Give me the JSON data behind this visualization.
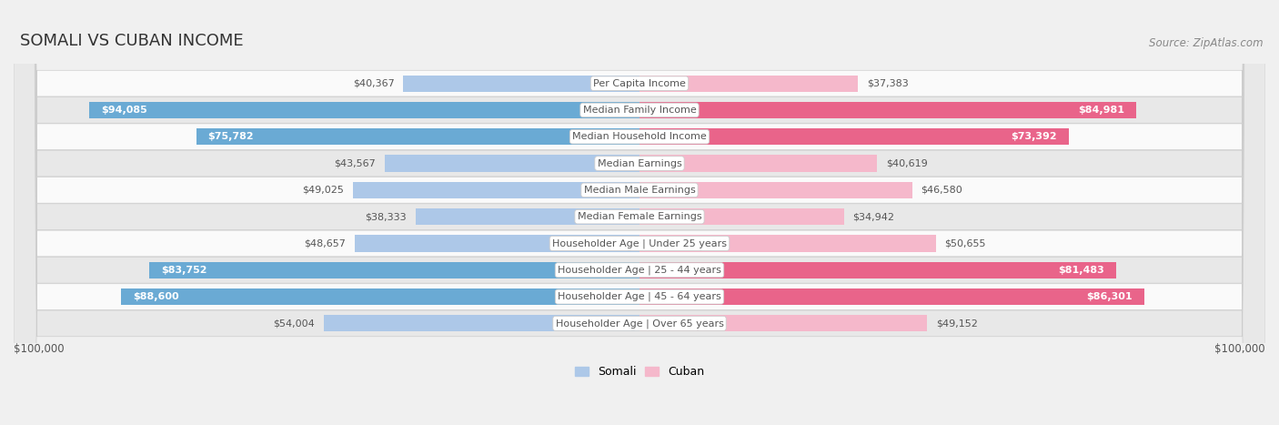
{
  "title": "SOMALI VS CUBAN INCOME",
  "source": "Source: ZipAtlas.com",
  "categories": [
    "Per Capita Income",
    "Median Family Income",
    "Median Household Income",
    "Median Earnings",
    "Median Male Earnings",
    "Median Female Earnings",
    "Householder Age | Under 25 years",
    "Householder Age | 25 - 44 years",
    "Householder Age | 45 - 64 years",
    "Householder Age | Over 65 years"
  ],
  "somali_values": [
    40367,
    94085,
    75782,
    43567,
    49025,
    38333,
    48657,
    83752,
    88600,
    54004
  ],
  "cuban_values": [
    37383,
    84981,
    73392,
    40619,
    46580,
    34942,
    50655,
    81483,
    86301,
    49152
  ],
  "somali_labels": [
    "$40,367",
    "$94,085",
    "$75,782",
    "$43,567",
    "$49,025",
    "$38,333",
    "$48,657",
    "$83,752",
    "$88,600",
    "$54,004"
  ],
  "cuban_labels": [
    "$37,383",
    "$84,981",
    "$73,392",
    "$40,619",
    "$46,580",
    "$34,942",
    "$50,655",
    "$81,483",
    "$86,301",
    "$49,152"
  ],
  "max_value": 100000,
  "somali_color_light": "#adc8e8",
  "somali_color_dark": "#6aaad4",
  "cuban_color_light": "#f5b8cb",
  "cuban_color_dark": "#e9648a",
  "bg_color": "#f0f0f0",
  "row_bg_light": "#fafafa",
  "row_bg_dark": "#e8e8e8",
  "label_color_inside": "#ffffff",
  "label_color_outside": "#555555",
  "center_label_bg": "#ffffff",
  "center_label_color": "#555555",
  "axis_label": "$100,000",
  "title_fontsize": 13,
  "source_fontsize": 8.5,
  "bar_label_fontsize": 8,
  "category_fontsize": 8,
  "axis_fontsize": 8.5,
  "inside_threshold": 55000,
  "somali_dark_threshold": 70000,
  "cuban_dark_threshold": 70000
}
